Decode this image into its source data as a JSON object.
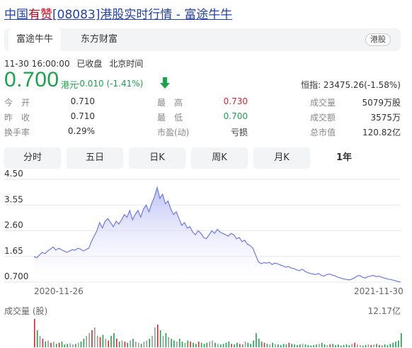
{
  "page_title": {
    "prefix": "中国",
    "highlight": "有赞",
    "rest": "[08083]港股实时行情 - 富途牛牛"
  },
  "tabs": [
    {
      "label": "富途牛牛",
      "active": true
    },
    {
      "label": "东方财富",
      "active": false
    }
  ],
  "market_badge": "港股",
  "status": {
    "timestamp": "11-30 16:00:00",
    "state": "已收盘",
    "timezone": "北京时间"
  },
  "quote": {
    "price": "0.700",
    "currency": "港元",
    "change": "-0.010 (-1.41%)",
    "index": "恒指: 23475.26(-1.58%)"
  },
  "stats": {
    "open_label": "今　开",
    "open_value": "0.710",
    "prev_label": "昨　收",
    "prev_value": "0.710",
    "turnover_label": "换手率",
    "turnover_value": "0.29%",
    "high_label": "最　高",
    "high_value": "0.730",
    "low_label": "最　低",
    "low_value": "0.700",
    "pe_label": "市盈(动)",
    "pe_value": "亏损",
    "volume_label": "成交量",
    "volume_value": "5079万股",
    "amount_label": "成交额",
    "amount_value": "3575万",
    "mktcap_label": "总市值",
    "mktcap_value": "120.82亿"
  },
  "period_tabs": [
    {
      "label": "分时",
      "active": false
    },
    {
      "label": "五日",
      "active": false
    },
    {
      "label": "日K",
      "active": false
    },
    {
      "label": "周K",
      "active": false
    },
    {
      "label": "月K",
      "active": false
    },
    {
      "label": "1年",
      "active": true
    }
  ],
  "colors": {
    "line": "#6f79e8",
    "fill_top": "#b6bcf3",
    "up": "#e0232f",
    "down": "#1aa34a",
    "volume_neutral": "#999999"
  },
  "chart_data": {
    "type": "area",
    "yticks": [
      "4.50",
      "3.55",
      "2.60",
      "1.65",
      "0.700"
    ],
    "ylim": [
      0.7,
      4.5
    ],
    "x_start_label": "2020-11-26",
    "x_end_label": "2021-11-30",
    "volume_title": "成交量 (股)",
    "volume_max_label": "12.17亿",
    "price_values": [
      1.65,
      1.6,
      1.7,
      1.8,
      1.75,
      1.85,
      1.92,
      2.0,
      1.88,
      1.95,
      1.9,
      1.85,
      1.8,
      1.85,
      1.9,
      1.88,
      1.95,
      1.92,
      1.85,
      1.9,
      1.95,
      2.2,
      2.4,
      2.6,
      2.9,
      2.7,
      2.95,
      3.05,
      2.9,
      2.75,
      2.95,
      2.85,
      3.0,
      3.2,
      3.1,
      3.35,
      3.0,
      3.2,
      3.35,
      3.1,
      3.4,
      3.55,
      3.3,
      3.6,
      3.85,
      4.2,
      3.8,
      3.95,
      3.6,
      3.7,
      3.4,
      3.2,
      3.3,
      3.05,
      2.8,
      2.9,
      2.7,
      2.75,
      2.55,
      2.45,
      2.6,
      2.5,
      2.35,
      2.3,
      2.45,
      2.6,
      2.5,
      2.65,
      2.55,
      2.5,
      2.45,
      2.4,
      2.5,
      2.45,
      2.3,
      2.35,
      2.2,
      2.25,
      2.1,
      2.05,
      1.95,
      1.7,
      1.45,
      1.38,
      1.42,
      1.4,
      1.43,
      1.35,
      1.4,
      1.38,
      1.33,
      1.3,
      1.25,
      1.28,
      1.22,
      1.2,
      1.15,
      1.12,
      1.18,
      1.1,
      1.05,
      1.02,
      1.0,
      0.98,
      1.02,
      0.95,
      0.92,
      0.98,
      1.0,
      0.96,
      0.93,
      0.88,
      0.85,
      0.82,
      0.8,
      0.78,
      0.8,
      0.85,
      0.92,
      0.95,
      0.88,
      0.85,
      0.9,
      0.92,
      0.95,
      0.9,
      0.92,
      0.88,
      0.85,
      0.82,
      0.8,
      0.78,
      0.75,
      0.72,
      0.7
    ],
    "volume_values": [
      0.5,
      0.3,
      0.2,
      0.15,
      0.1,
      0.12,
      0.08,
      0.1,
      0.06,
      0.08,
      0.1,
      0.05,
      0.06,
      0.07,
      0.05,
      0.06,
      0.08,
      0.1,
      0.15,
      0.2,
      0.25,
      0.3,
      0.35,
      0.2,
      0.18,
      0.22,
      0.15,
      0.12,
      0.2,
      0.25,
      0.15,
      0.1,
      0.12,
      0.1,
      0.08,
      0.12,
      0.15,
      0.1,
      0.08,
      0.06,
      0.1,
      0.12,
      0.15,
      0.2,
      0.35,
      0.4,
      0.3,
      0.2,
      0.25,
      0.18,
      0.15,
      0.12,
      0.1,
      0.15,
      0.1,
      0.08,
      0.12,
      0.1,
      0.08,
      0.06,
      0.1,
      0.08,
      0.06,
      0.08,
      0.1,
      0.12,
      0.08,
      0.06,
      0.05,
      0.06,
      0.08,
      0.1,
      0.06,
      0.05,
      0.08,
      0.06,
      0.05,
      0.1,
      0.08,
      0.06,
      0.12,
      0.25,
      0.15,
      0.1,
      0.08,
      0.06,
      0.05,
      0.08,
      0.06,
      0.05,
      0.04,
      0.06,
      0.05,
      0.08,
      0.06,
      0.05,
      0.04,
      0.05,
      0.06,
      0.05,
      0.04,
      0.03,
      0.04,
      0.05,
      0.06,
      0.08,
      0.05,
      0.04,
      0.05,
      0.06,
      0.04,
      0.05,
      0.03,
      0.04,
      0.05,
      0.04,
      0.06,
      0.08,
      0.05,
      0.04,
      0.03,
      0.04,
      0.05,
      0.04,
      0.05,
      0.06,
      0.04,
      0.03,
      0.05,
      0.04,
      0.06,
      0.08,
      0.1,
      0.12,
      0.25
    ]
  }
}
